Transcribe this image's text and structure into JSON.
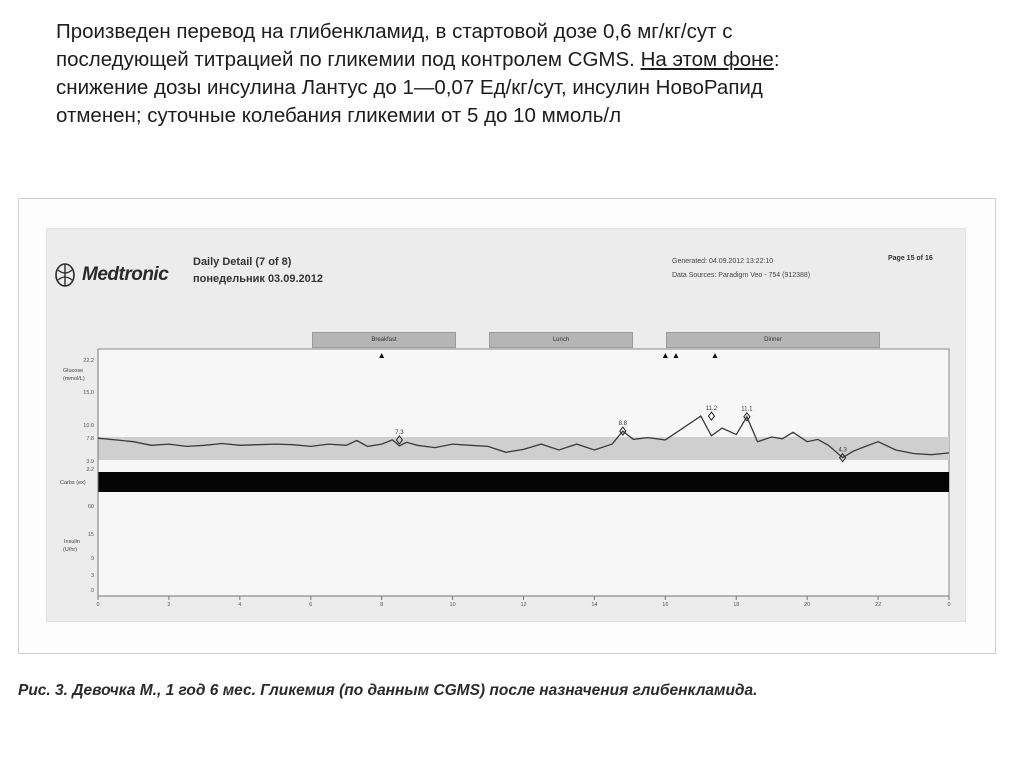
{
  "intro": {
    "line1": "Произведен перевод на глибенкламид, в стартовой дозе 0,6 мг/кг/сут с",
    "line2_a": "последующей титрацией по гликемии под контролем CGMS. ",
    "line2_b": "На этом фоне",
    "line2_c": ":",
    "line3": "снижение дозы инсулина Лантус до 1—0,07 Ед/кг/сут, инсулин НовоРапид",
    "line4": "отменен; суточные колебания гликемии от 5 до 10 ммоль/л"
  },
  "report": {
    "brand": "Medtronic",
    "title": "Daily Detail (7 of 8)",
    "date": "понедельник 03.09.2012",
    "generated": "Generated: 04.09.2012 13:22:10",
    "sources": "Data Sources: Paradigm Veo - 754 (912388)",
    "page": "Page 15 of 16",
    "meals": {
      "breakfast": "Breakfast",
      "lunch": "Lunch",
      "dinner": "Dinner"
    },
    "glucose_label_1": "Glucose",
    "glucose_label_2": "(mmol/L)",
    "carbs_label": "Carbs (ex)",
    "insulin_label_1": "Insulin",
    "insulin_label_2": "(U/hr)",
    "glucose_ticks": [
      "22.2",
      "15.0",
      "10.0",
      "7.8",
      "3.9",
      "2.2"
    ],
    "carbs_ticks": [
      "60"
    ],
    "insulin_ticks": [
      "15",
      "9",
      "3",
      "0"
    ]
  },
  "caption": "Рис. 3. Девочка М., 1 год 6 мес. Гликемия (по данным CGMS) после назначения глибенкламида.",
  "chart_data": {
    "type": "line",
    "title": "Daily Detail (7 of 8)",
    "xlabel": "",
    "ylabel": "Glucose (mmol/L)",
    "xlim": [
      0,
      24
    ],
    "x_ticks": [
      "0",
      "2",
      "4",
      "6",
      "8",
      "10",
      "12",
      "14",
      "16",
      "18",
      "20",
      "22",
      "0"
    ],
    "ylim": [
      2.2,
      22.2
    ],
    "target_band": [
      3.9,
      7.8
    ],
    "grid": false,
    "series": [
      {
        "x": [
          0,
          0.5,
          1,
          1.5,
          2,
          2.5,
          3,
          3.5,
          4,
          4.5,
          5,
          5.5,
          6,
          6.5,
          7,
          7.3,
          7.6,
          8,
          8.3,
          8.5,
          8.7,
          9,
          9.5,
          10,
          10.5,
          11,
          11.5,
          12,
          12.5,
          13,
          13.5,
          14,
          14.5,
          14.8,
          15.1,
          15.5,
          16,
          17,
          17.3,
          17.6,
          18,
          18.3,
          18.6,
          19,
          19.3,
          19.6,
          20,
          20.3,
          20.6,
          21,
          21.3,
          21.6,
          22,
          22.5,
          23,
          23.5,
          24
        ],
        "y": [
          7.6,
          7.3,
          7.0,
          6.4,
          6.6,
          6.2,
          6.4,
          6.7,
          6.4,
          6.5,
          6.6,
          6.5,
          6.2,
          6.6,
          6.4,
          7.2,
          6.2,
          6.6,
          7.3,
          6.3,
          6.9,
          6.4,
          6.0,
          6.6,
          6.4,
          6.2,
          5.2,
          5.7,
          6.6,
          5.6,
          6.6,
          5.6,
          6.6,
          8.8,
          7.4,
          7.7,
          7.3,
          11.2,
          8.0,
          9.3,
          8.2,
          11.1,
          7.0,
          7.8,
          7.5,
          8.6,
          7.0,
          7.4,
          6.4,
          4.3,
          5.4,
          6.1,
          7.0,
          5.6,
          5.0,
          4.8,
          5.1
        ]
      }
    ],
    "annotations": [
      {
        "x": 8.5,
        "y": 7.3,
        "label": "7.3"
      },
      {
        "x": 14.8,
        "y": 8.8,
        "label": "8.8"
      },
      {
        "x": 17.3,
        "y": 11.2,
        "label": "11.2"
      },
      {
        "x": 18.3,
        "y": 11.1,
        "label": "11.1"
      },
      {
        "x": 21.0,
        "y": 4.3,
        "label": "4.3"
      }
    ],
    "event_markers_x": [
      8.0,
      16.0,
      16.3,
      17.4
    ]
  }
}
